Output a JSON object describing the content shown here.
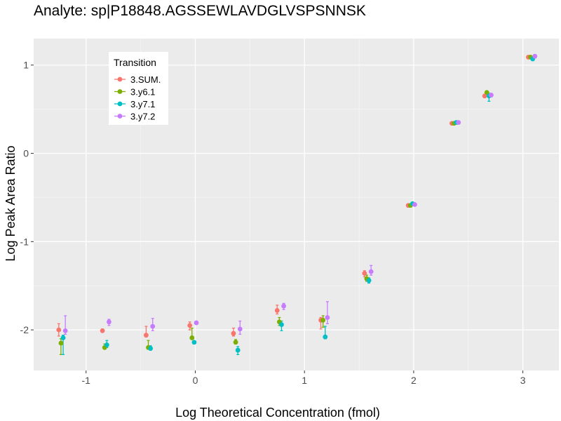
{
  "chart_data": {
    "type": "scatter",
    "title": "Analyte: sp|P18848.AGSSEWLAVDGLVSPSNNSK",
    "xlabel": "Log Theoretical Concentration (fmol)",
    "ylabel": "Log Peak Area Ratio",
    "xlim": [
      -1.48,
      3.33
    ],
    "ylim": [
      -2.46,
      1.3
    ],
    "x_ticks": [
      -1,
      0,
      1,
      2,
      3
    ],
    "x_tick_labels": [
      "-1",
      "0",
      "1",
      "2",
      "3"
    ],
    "y_ticks": [
      -2,
      -1,
      0,
      1
    ],
    "y_tick_labels": [
      "-2",
      "-1",
      "0",
      "1"
    ],
    "grid": true,
    "legend": {
      "title": "Transition",
      "position": "top-left inside"
    },
    "x_levels": [
      -1.22,
      -0.82,
      -0.42,
      -0.02,
      0.38,
      0.78,
      1.18,
      1.58,
      1.98,
      2.38,
      2.68,
      3.08
    ],
    "series": [
      {
        "name": "3.SUM.",
        "color": "#F8766D",
        "values": [
          -2.0,
          -2.01,
          -2.06,
          -1.95,
          -2.04,
          -1.78,
          -1.89,
          -1.36,
          -0.59,
          0.34,
          0.65,
          1.09
        ],
        "err_low": [
          -2.07,
          -2.01,
          -2.08,
          -2.0,
          -2.07,
          -1.82,
          -1.99,
          -1.4,
          -0.61,
          0.33,
          0.63,
          1.08
        ],
        "err_high": [
          -1.93,
          -1.99,
          -1.96,
          -1.91,
          -1.98,
          -1.72,
          -1.86,
          -1.33,
          -0.58,
          0.35,
          0.67,
          1.1
        ]
      },
      {
        "name": "3.y6.1",
        "color": "#7CAE00",
        "values": [
          -2.15,
          -2.2,
          -2.2,
          -2.09,
          -2.14,
          -1.91,
          -1.89,
          -1.42,
          -0.59,
          0.34,
          0.69,
          1.09
        ],
        "err_low": [
          -2.28,
          -2.2,
          -2.22,
          -2.1,
          -2.16,
          -1.95,
          -1.97,
          -1.45,
          -0.61,
          0.33,
          0.67,
          1.08
        ],
        "err_high": [
          -2.1,
          -2.16,
          -2.12,
          -1.98,
          -2.11,
          -1.86,
          -1.84,
          -1.38,
          -0.58,
          0.35,
          0.7,
          1.1
        ]
      },
      {
        "name": "3.y7.1",
        "color": "#00BFC4",
        "values": [
          -2.09,
          -2.17,
          -2.21,
          -2.14,
          -2.23,
          -1.94,
          -2.08,
          -1.44,
          -0.57,
          0.35,
          0.65,
          1.07
        ],
        "err_low": [
          -2.28,
          -2.2,
          -2.23,
          -2.16,
          -2.28,
          -2.01,
          -2.1,
          -1.47,
          -0.58,
          0.33,
          0.59,
          1.05
        ],
        "err_high": [
          -2.06,
          -2.12,
          -2.18,
          -2.13,
          -2.19,
          -1.9,
          -1.96,
          -1.41,
          -0.56,
          0.36,
          0.68,
          1.09
        ]
      },
      {
        "name": "3.y7.2",
        "color": "#C77CFF",
        "values": [
          -2.01,
          -1.91,
          -1.96,
          -1.92,
          -1.99,
          -1.73,
          -1.86,
          -1.34,
          -0.58,
          0.35,
          0.66,
          1.1
        ],
        "err_low": [
          -2.05,
          -1.95,
          -2.01,
          -1.93,
          -2.05,
          -1.77,
          -1.93,
          -1.38,
          -0.59,
          0.33,
          0.64,
          1.08
        ],
        "err_high": [
          -1.84,
          -1.88,
          -1.87,
          -1.91,
          -1.9,
          -1.7,
          -1.68,
          -1.27,
          -0.57,
          0.36,
          0.68,
          1.12
        ]
      }
    ]
  }
}
